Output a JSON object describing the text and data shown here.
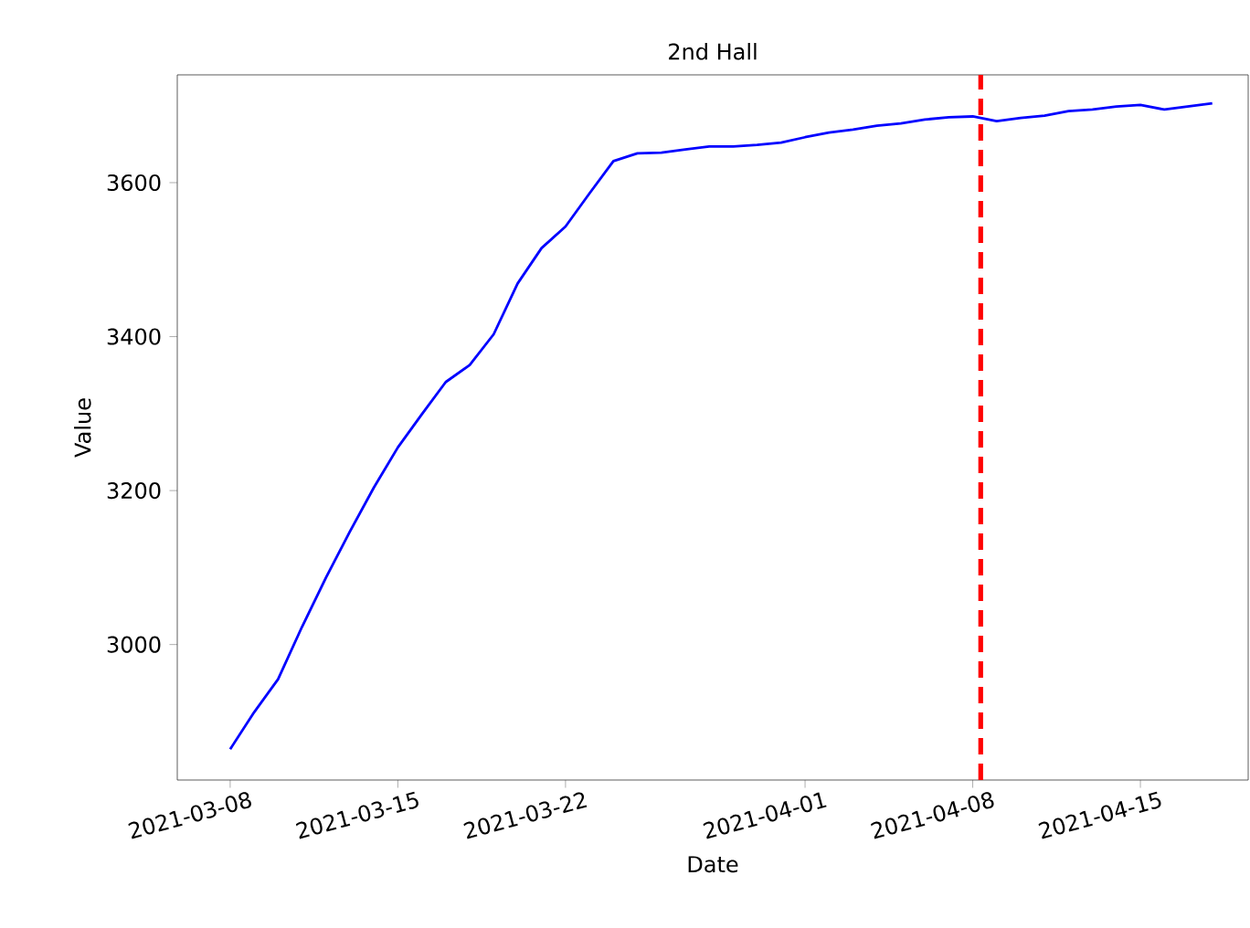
{
  "chart_data": {
    "type": "line",
    "title": "2nd Hall",
    "xlabel": "Date",
    "ylabel": "Value",
    "x": [
      "2021-03-08",
      "2021-03-09",
      "2021-03-10",
      "2021-03-11",
      "2021-03-12",
      "2021-03-13",
      "2021-03-14",
      "2021-03-15",
      "2021-03-16",
      "2021-03-17",
      "2021-03-18",
      "2021-03-19",
      "2021-03-20",
      "2021-03-21",
      "2021-03-22",
      "2021-03-23",
      "2021-03-24",
      "2021-03-25",
      "2021-03-26",
      "2021-03-27",
      "2021-03-28",
      "2021-03-29",
      "2021-03-30",
      "2021-03-31",
      "2021-04-01",
      "2021-04-02",
      "2021-04-03",
      "2021-04-04",
      "2021-04-05",
      "2021-04-06",
      "2021-04-07",
      "2021-04-08",
      "2021-04-09",
      "2021-04-10",
      "2021-04-11",
      "2021-04-12",
      "2021-04-13",
      "2021-04-14",
      "2021-04-15",
      "2021-04-16",
      "2021-04-17",
      "2021-04-18"
    ],
    "series": [
      {
        "color": "#0000ff",
        "values": [
          2864,
          2912,
          2955,
          3023,
          3087,
          3147,
          3204,
          3256,
          3299,
          3341,
          3363,
          3403,
          3469,
          3515,
          3543,
          3586,
          3628,
          3638,
          3639,
          3643,
          3647,
          3647,
          3649,
          3652,
          3659,
          3665,
          3669,
          3674,
          3677,
          3682,
          3685,
          3686,
          3680,
          3684,
          3687,
          3693,
          3695,
          3699,
          3701,
          3695,
          3699,
          3703
        ]
      }
    ],
    "xlim": [
      "2021-03-05T19:00",
      "2021-04-19T12:00"
    ],
    "ylim": [
      2824,
      3740
    ],
    "xticks": [
      "2021-03-08",
      "2021-03-15",
      "2021-03-22",
      "2021-04-01",
      "2021-04-08",
      "2021-04-15"
    ],
    "yticks": [
      3000,
      3200,
      3400,
      3600
    ],
    "ref_lines": [
      {
        "axis": "x",
        "value": "2021-04-08T08:00",
        "color": "#ff0000",
        "line_style": "dashed"
      }
    ],
    "grid": false,
    "marker": "none",
    "line_style": "solid"
  }
}
